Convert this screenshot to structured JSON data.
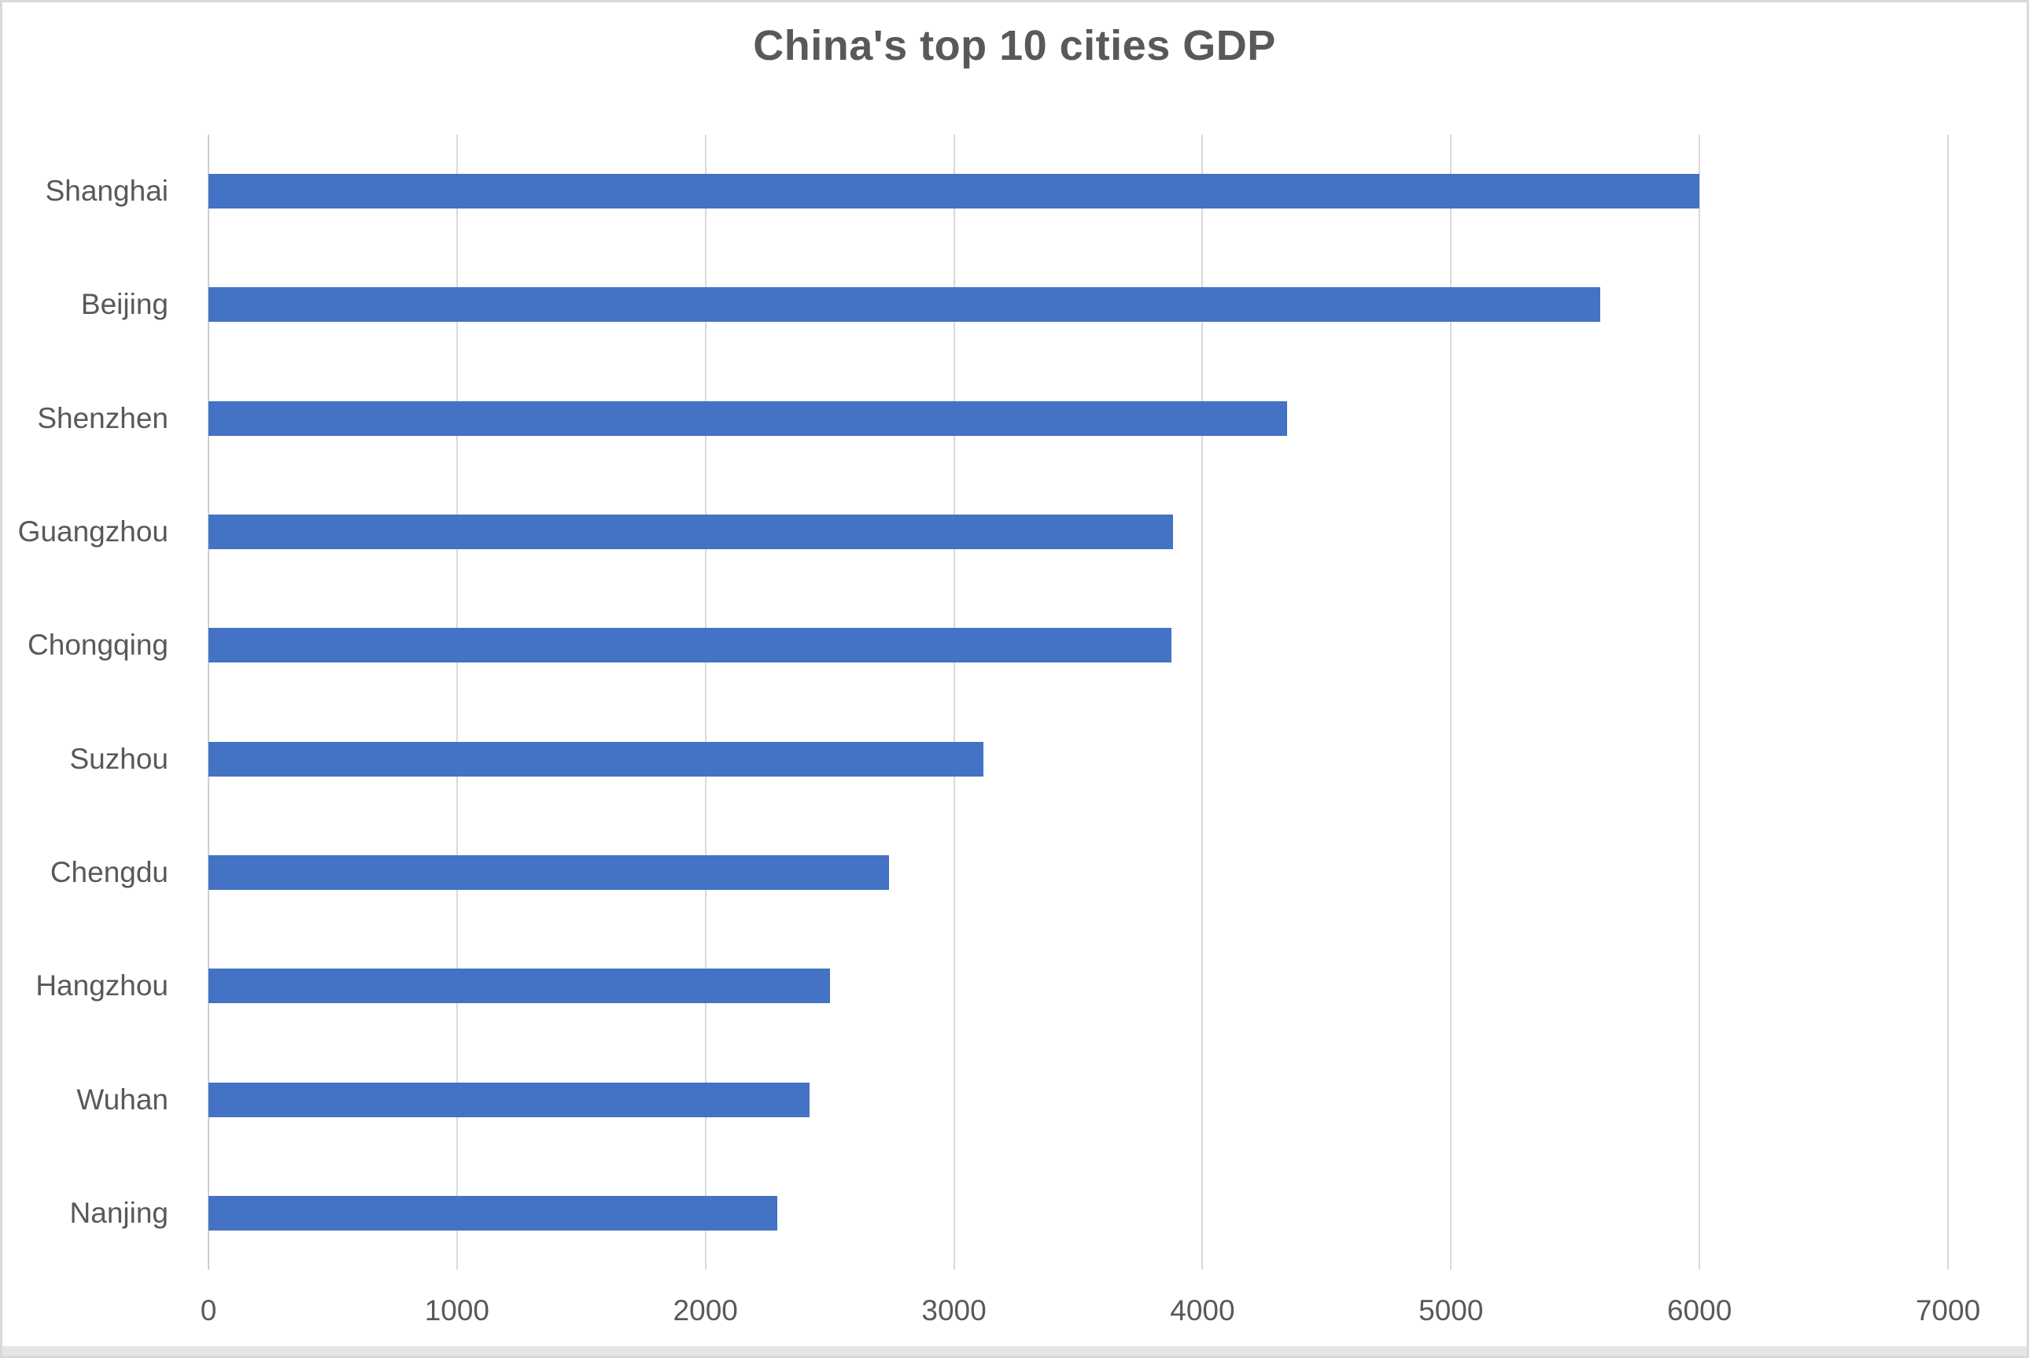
{
  "chart_data": {
    "type": "bar",
    "orientation": "horizontal",
    "title": "China's top 10 cities GDP",
    "categories": [
      "Shanghai",
      "Beijing",
      "Shenzhen",
      "Guangzhou",
      "Chongqing",
      "Suzhou",
      "Chengdu",
      "Hangzhou",
      "Wuhan",
      "Nanjing"
    ],
    "values": [
      6000,
      5600,
      4340,
      3880,
      3875,
      3120,
      2740,
      2500,
      2420,
      2290
    ],
    "xlabel": "",
    "ylabel": "",
    "xlim": [
      0,
      7000
    ],
    "x_ticks": [
      0,
      1000,
      2000,
      3000,
      4000,
      5000,
      6000,
      7000
    ],
    "grid": true,
    "legend": false,
    "colors": {
      "bar": "#4472c4",
      "gridline": "#d9d9d9",
      "text": "#595959",
      "title": "#595959",
      "frame_border": "#d9d9d9",
      "bottom_strip": "#e7e6e6",
      "background": "#ffffff"
    }
  }
}
